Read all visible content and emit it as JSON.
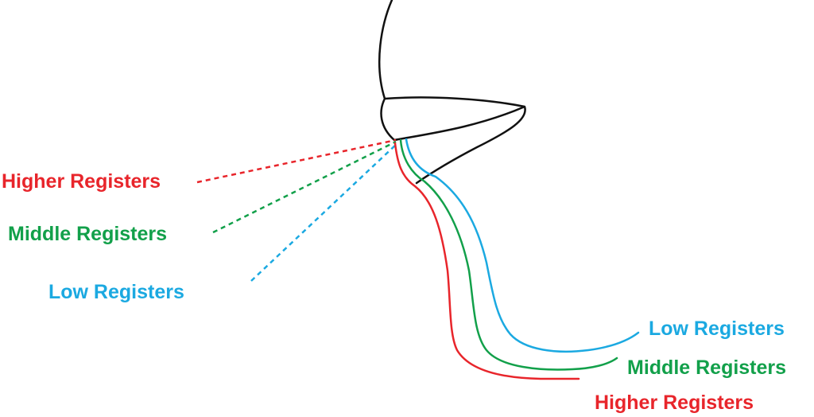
{
  "labels": {
    "left_higher": "Higher Registers",
    "left_middle": "Middle Registers",
    "left_low": "Low Registers",
    "right_low": "Low Registers",
    "right_middle": "Middle Registers",
    "right_higher": "Higher Registers"
  },
  "colors": {
    "higher": "#e8252b",
    "middle": "#12a04a",
    "low": "#1ba9e1",
    "outline": "#111111"
  }
}
